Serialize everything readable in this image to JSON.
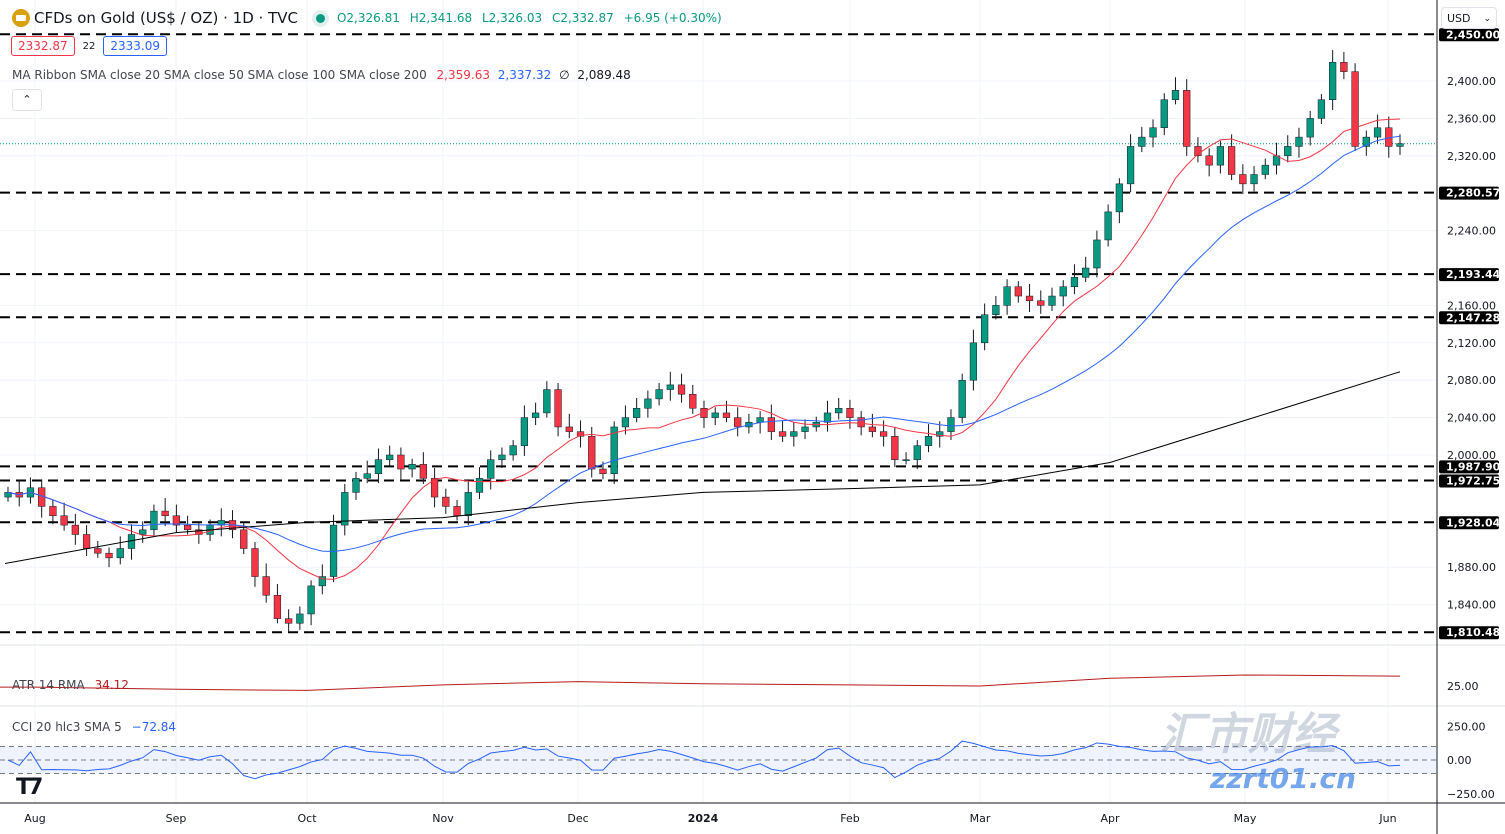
{
  "header": {
    "title": "CFDs on Gold (US$ / OZ) · 1D · TVC",
    "open": "O2,326.81",
    "high": "H2,341.68",
    "low": "L2,326.03",
    "close": "C2,332.87",
    "change": "+6.95 (+0.30%)",
    "status_color": "#089981"
  },
  "quote": {
    "sell": "2332.87",
    "spread": "22",
    "buy": "2333.09"
  },
  "indicators": {
    "ma_ribbon": {
      "label": "MA Ribbon SMA close 20 SMA close 50 SMA close 100 SMA close 200",
      "v1": "2,359.63",
      "v2": "2,337.32",
      "v3": "∅",
      "v4": "2,089.48"
    },
    "atr": {
      "label": "ATR 14 RMA",
      "value": "34.12"
    },
    "cci": {
      "label": "CCI 20 hlc3 SMA 5",
      "value": "−72.84"
    }
  },
  "collapse_icon": "chevron-up",
  "currency": "USD",
  "watermark": {
    "text": "汇市财经",
    "url_text": "zzrt01.cn"
  },
  "colors": {
    "up": "#089981",
    "down": "#f23645",
    "sma20": "#f23645",
    "sma50": "#2962ff",
    "sma200": "#000000",
    "atr": "#b71c1c",
    "cci": "#2962ff"
  },
  "chart_data": {
    "type": "candlestick",
    "x_ticks": [
      "Aug",
      "Sep",
      "Oct",
      "Nov",
      "Dec",
      "2024",
      "Feb",
      "Mar",
      "Apr",
      "May",
      "Jun"
    ],
    "y_ticks": [
      "2,400.00",
      "2,360.00",
      "2,320.00",
      "2,240.00",
      "2,160.00",
      "2,120.00",
      "2,080.00",
      "2,040.00",
      "2,000.00",
      "1,880.00",
      "1,840.00"
    ],
    "ylim": [
      1800,
      2450
    ],
    "levels": [
      "2,450.00",
      "2,280.57",
      "2,193.44",
      "2,147.28",
      "1,987.90",
      "1,972.75",
      "1,928.04",
      "1,810.48"
    ],
    "last_price": 2332.87,
    "closes": [
      1960,
      1955,
      1965,
      1945,
      1935,
      1925,
      1915,
      1900,
      1895,
      1890,
      1900,
      1915,
      1920,
      1940,
      1935,
      1925,
      1920,
      1915,
      1925,
      1930,
      1920,
      1900,
      1870,
      1850,
      1825,
      1820,
      1830,
      1860,
      1870,
      1925,
      1960,
      1975,
      1980,
      1995,
      2000,
      1985,
      1990,
      1975,
      1955,
      1945,
      1935,
      1960,
      1975,
      1995,
      2000,
      2010,
      2040,
      2045,
      2070,
      2030,
      2025,
      2020,
      1985,
      1980,
      2030,
      2040,
      2050,
      2060,
      2070,
      2075,
      2065,
      2050,
      2040,
      2045,
      2040,
      2030,
      2035,
      2040,
      2025,
      2020,
      2025,
      2030,
      2035,
      2045,
      2050,
      2040,
      2030,
      2025,
      2020,
      1995,
      1995,
      2010,
      2020,
      2025,
      2040,
      2080,
      2120,
      2150,
      2160,
      2180,
      2170,
      2165,
      2160,
      2170,
      2180,
      2190,
      2200,
      2230,
      2260,
      2290,
      2330,
      2340,
      2350,
      2380,
      2390,
      2330,
      2320,
      2310,
      2330,
      2300,
      2290,
      2300,
      2310,
      2320,
      2330,
      2340,
      2360,
      2380,
      2420,
      2410,
      2330,
      2340,
      2350,
      2330,
      2333
    ],
    "sma200_monthly": [
      1884,
      1917,
      1928,
      1933,
      1949,
      1960,
      1964,
      1968,
      1992,
      2037,
      2089
    ],
    "atr_pane": {
      "tick": "25.00",
      "monthly": [
        24,
        24,
        22,
        21,
        26,
        29,
        27,
        26,
        25,
        32,
        35,
        34
      ]
    },
    "cci_pane": {
      "ticks": [
        "250.00",
        "0.00",
        "−250.00"
      ],
      "bands": [
        100,
        -100
      ]
    }
  }
}
